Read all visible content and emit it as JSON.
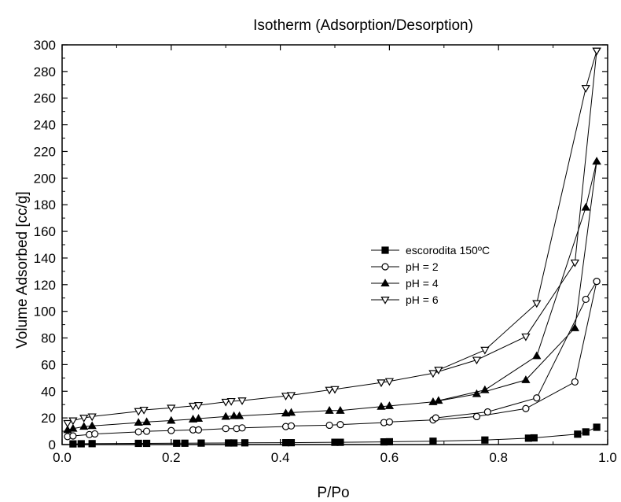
{
  "chart_data": {
    "type": "line",
    "title": "Isotherm (Adsorption/Desorption)",
    "xlabel": "P/Po",
    "ylabel": "Volume Adsorbed [cc/g]",
    "xlim": [
      0.0,
      1.0
    ],
    "ylim": [
      0,
      300
    ],
    "x_ticks": [
      0.0,
      0.2,
      0.4,
      0.6,
      0.8,
      1.0
    ],
    "x_tick_labels": [
      "0.0",
      "0.2",
      "0.4",
      "0.6",
      "0.8",
      "1.0"
    ],
    "y_ticks": [
      0,
      20,
      40,
      60,
      80,
      100,
      120,
      140,
      160,
      180,
      200,
      220,
      240,
      260,
      280,
      300
    ],
    "y_tick_labels": [
      "0",
      "20",
      "40",
      "60",
      "80",
      "100",
      "120",
      "140",
      "160",
      "180",
      "200",
      "220",
      "240",
      "260",
      "280",
      "300"
    ],
    "grid": false,
    "legend_position": "center-right",
    "series": [
      {
        "name": "escorodita 150ºC",
        "marker": "filled-square",
        "color": "#000000",
        "adsorption": {
          "x": [
            0.02,
            0.035,
            0.055,
            0.14,
            0.155,
            0.21,
            0.225,
            0.255,
            0.305,
            0.315,
            0.335,
            0.41,
            0.42,
            0.5,
            0.51,
            0.59,
            0.6,
            0.68,
            0.775,
            0.855,
            0.865,
            0.945,
            0.96,
            0.98
          ],
          "y": [
            0.5,
            0.6,
            0.7,
            0.9,
            0.9,
            1.0,
            1.0,
            1.1,
            1.2,
            1.2,
            1.3,
            1.4,
            1.4,
            1.7,
            1.7,
            2.0,
            2.1,
            2.5,
            3.4,
            4.8,
            5.0,
            7.8,
            9.5,
            13.0
          ]
        },
        "desorption": null
      },
      {
        "name": "pH = 2",
        "marker": "open-circle",
        "color": "#000000",
        "adsorption": {
          "x": [
            0.01,
            0.02,
            0.05,
            0.06,
            0.14,
            0.155,
            0.2,
            0.24,
            0.25,
            0.3,
            0.32,
            0.33,
            0.41,
            0.42,
            0.49,
            0.51,
            0.59,
            0.6,
            0.68,
            0.76,
            0.85,
            0.94,
            0.98
          ],
          "y": [
            6.0,
            6.5,
            7.5,
            8.0,
            9.5,
            10.0,
            10.5,
            11.0,
            11.0,
            12.0,
            12.0,
            12.5,
            13.5,
            14.0,
            14.5,
            15.0,
            16.5,
            17.0,
            18.5,
            21.0,
            27.0,
            47.0,
            122.5
          ]
        },
        "desorption": {
          "x": [
            0.98,
            0.96,
            0.87,
            0.78,
            0.685
          ],
          "y": [
            122.5,
            109.0,
            35.0,
            24.5,
            20.0
          ]
        }
      },
      {
        "name": "pH = 4",
        "marker": "filled-triangle-up",
        "color": "#000000",
        "adsorption": {
          "x": [
            0.01,
            0.02,
            0.04,
            0.055,
            0.14,
            0.155,
            0.2,
            0.24,
            0.25,
            0.3,
            0.315,
            0.325,
            0.41,
            0.42,
            0.49,
            0.51,
            0.585,
            0.6,
            0.68,
            0.76,
            0.85,
            0.94,
            0.98
          ],
          "y": [
            11.0,
            12.0,
            13.5,
            14.0,
            16.5,
            17.0,
            18.0,
            19.0,
            19.5,
            21.0,
            21.5,
            21.5,
            23.5,
            24.0,
            25.5,
            25.5,
            28.5,
            29.0,
            32.0,
            38.0,
            48.5,
            87.5,
            212.5
          ]
        },
        "desorption": {
          "x": [
            0.98,
            0.96,
            0.87,
            0.775,
            0.69
          ],
          "y": [
            212.5,
            178.0,
            66.5,
            41.0,
            33.0
          ]
        }
      },
      {
        "name": "pH = 6",
        "marker": "open-triangle-down",
        "color": "#000000",
        "adsorption": {
          "x": [
            0.01,
            0.02,
            0.04,
            0.055,
            0.14,
            0.15,
            0.2,
            0.24,
            0.25,
            0.3,
            0.31,
            0.33,
            0.41,
            0.42,
            0.49,
            0.5,
            0.585,
            0.6,
            0.68,
            0.76,
            0.85,
            0.94,
            0.98
          ],
          "y": [
            16.0,
            18.0,
            20.0,
            21.0,
            25.0,
            26.0,
            27.5,
            29.0,
            29.5,
            32.0,
            32.5,
            33.0,
            36.5,
            37.0,
            41.0,
            41.5,
            46.5,
            47.5,
            53.5,
            63.5,
            81.0,
            136.5,
            295.5
          ]
        },
        "desorption": {
          "x": [
            0.98,
            0.96,
            0.87,
            0.775,
            0.69
          ],
          "y": [
            295.5,
            267.5,
            106.0,
            71.0,
            56.0
          ]
        }
      }
    ]
  }
}
